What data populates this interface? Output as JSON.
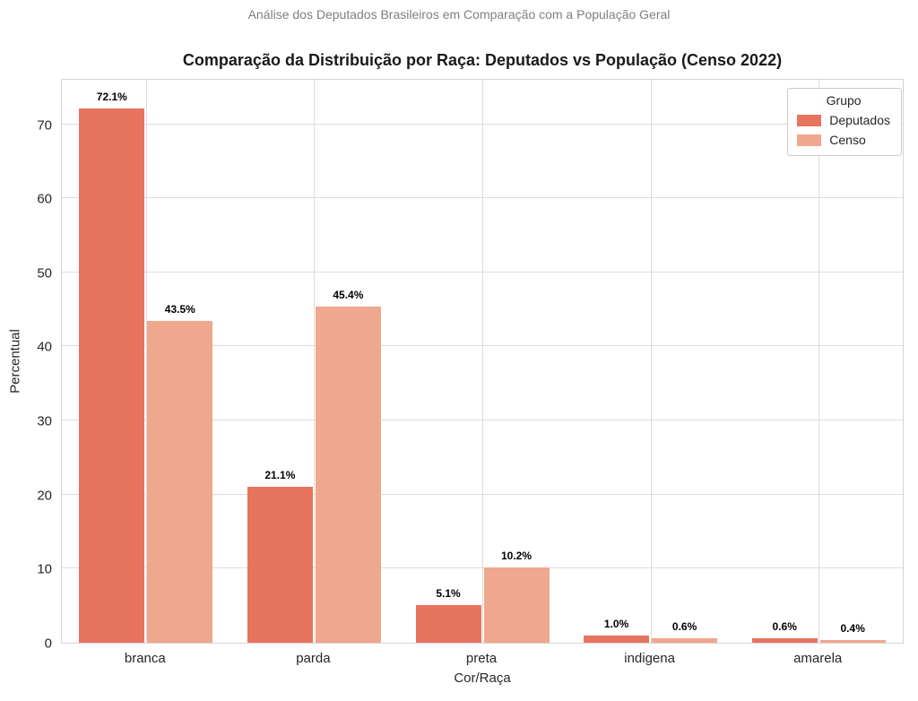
{
  "figure": {
    "suptitle": "Análise dos Deputados Brasileiros em Comparação com a População Geral",
    "title": "Comparação da Distribuição por Raça: Deputados vs População (Censo 2022)"
  },
  "chart_data": {
    "type": "bar",
    "categories": [
      "branca",
      "parda",
      "preta",
      "indigena",
      "amarela"
    ],
    "series": [
      {
        "name": "Deputados",
        "color": "#e6745f",
        "values": [
          72.1,
          21.1,
          5.1,
          1.0,
          0.6
        ],
        "labels": [
          "72.1%",
          "21.1%",
          "5.1%",
          "1.0%",
          "0.6%"
        ]
      },
      {
        "name": "Censo",
        "color": "#efa78d",
        "values": [
          43.5,
          45.4,
          10.2,
          0.6,
          0.4
        ],
        "labels": [
          "43.5%",
          "45.4%",
          "10.2%",
          "0.6%",
          "0.4%"
        ]
      }
    ],
    "title": "Comparação da Distribuição por Raça: Deputados vs População (Censo 2022)",
    "xlabel": "Cor/Raça",
    "ylabel": "Percentual",
    "yticks": [
      0,
      10,
      20,
      30,
      40,
      50,
      60,
      70
    ],
    "ylim": [
      0,
      76
    ],
    "grid": true,
    "legend": {
      "title": "Grupo",
      "position": "upper right"
    },
    "colors": {
      "grid": "#dcdcdc",
      "spine": "#d4d4d4",
      "tick_text": "#262626",
      "suptitle_text": "#7f7f7f"
    }
  }
}
